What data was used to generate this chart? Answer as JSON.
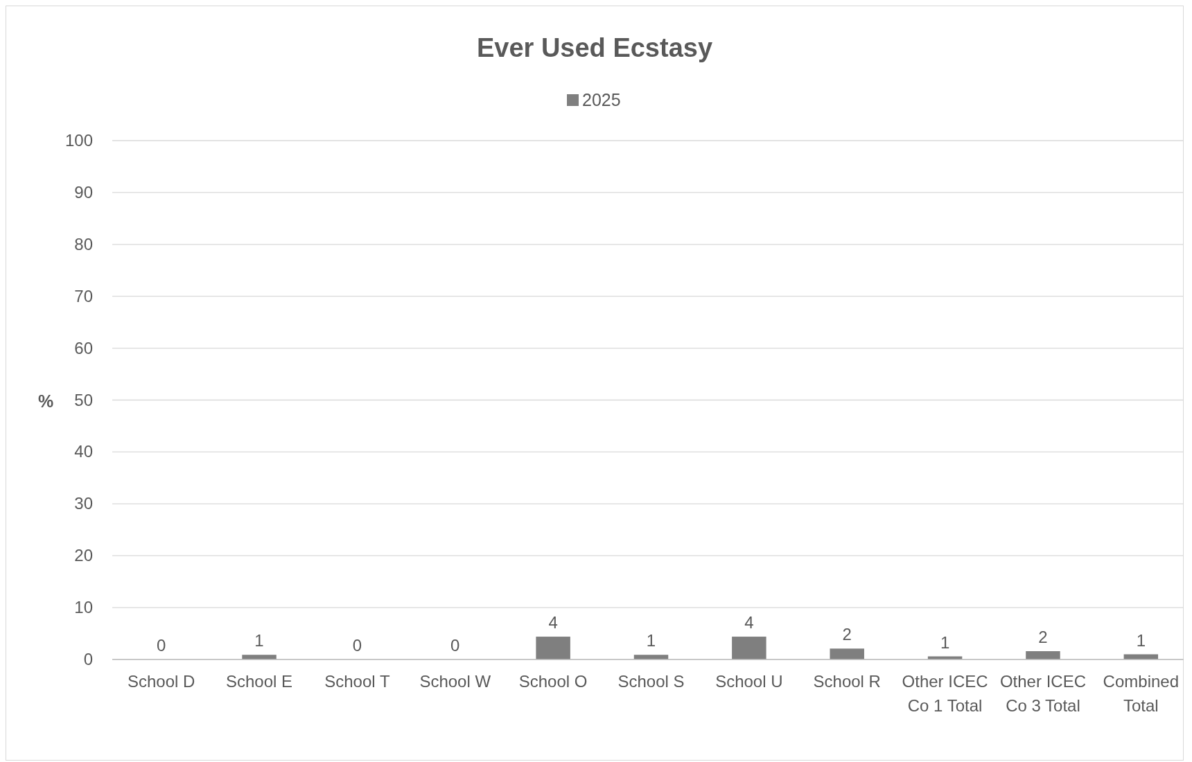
{
  "chart_data": {
    "type": "bar",
    "title": "Ever Used Ecstasy",
    "ylabel": "%",
    "categories": [
      "School D",
      "School E",
      "School T",
      "School W",
      "School O",
      "School S",
      "School U",
      "School R",
      "Other ICEC Co 1 Total",
      "Other ICEC Co 3 Total",
      "Combined Total"
    ],
    "series": [
      {
        "name": "2025",
        "color": "#7f7f7f",
        "values": [
          0,
          0.9,
          0,
          0,
          4.4,
          0.9,
          4.4,
          2.1,
          0.6,
          1.6,
          1.0
        ],
        "value_labels": [
          "0",
          "1",
          "0",
          "0",
          "4",
          "1",
          "4",
          "2",
          "1",
          "2",
          "1"
        ]
      }
    ],
    "ylim": [
      0,
      100
    ],
    "yticks": [
      0,
      10,
      20,
      30,
      40,
      50,
      60,
      70,
      80,
      90,
      100
    ],
    "grid": "y",
    "legend": "top"
  }
}
